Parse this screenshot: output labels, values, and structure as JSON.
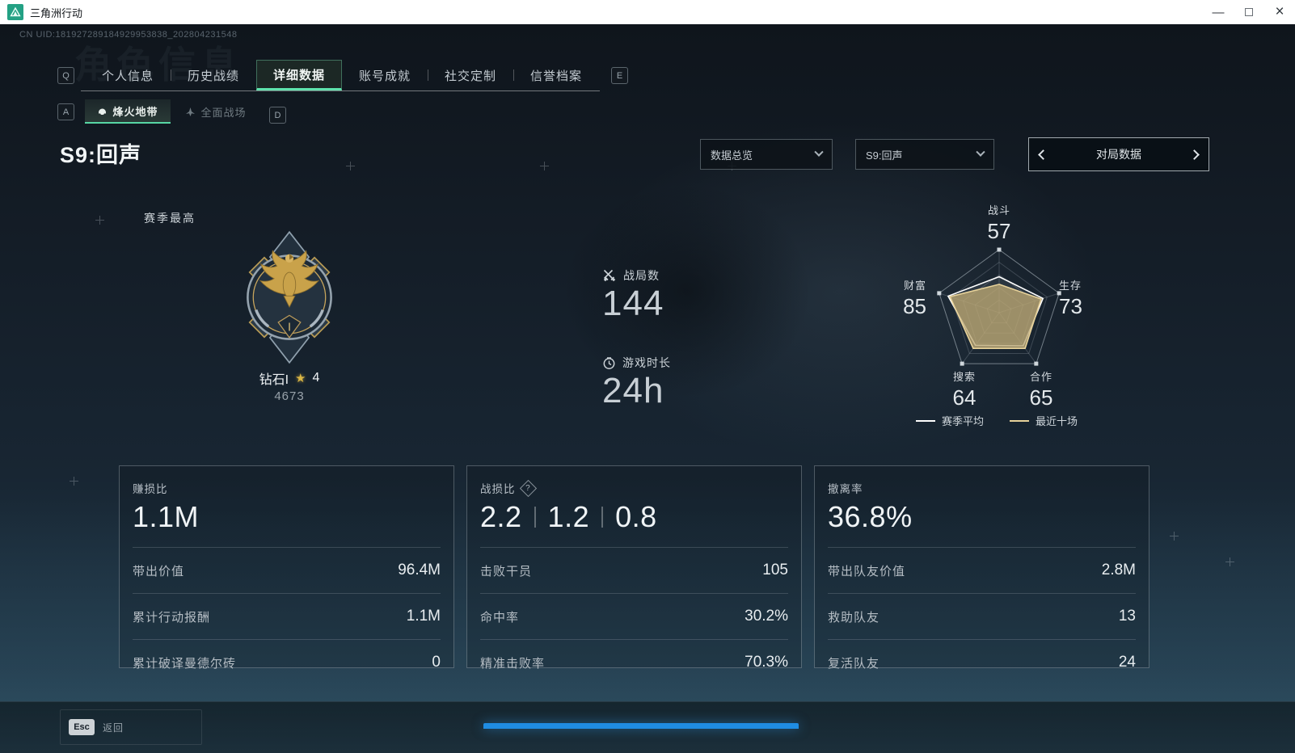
{
  "window": {
    "title": "三角洲行动",
    "uid": "CN UID:181927289184929953838_202804231548",
    "minimize_label": "—",
    "close_label": "×"
  },
  "ghost_title": "角色信息",
  "hotkeys": {
    "tabs_left": "Q",
    "tabs_right": "E",
    "subtabs_left": "A",
    "subtabs_right": "D"
  },
  "tabs": [
    {
      "label": "个人信息"
    },
    {
      "label": "历史战绩"
    },
    {
      "label": "详细数据"
    },
    {
      "label": "账号成就"
    },
    {
      "label": "社交定制"
    },
    {
      "label": "信誉档案"
    }
  ],
  "subtabs": [
    {
      "label": "烽火地带"
    },
    {
      "label": "全面战场"
    }
  ],
  "season": {
    "heading": "S9:回声",
    "overview_dropdown": "数据总览",
    "season_dropdown": "S9:回声",
    "pager_label": "对局数据"
  },
  "season_best": {
    "label": "赛季最高",
    "rank": "钻石I",
    "star_icon": "★",
    "star_count": "4",
    "points": "4673",
    "tier_numeral": "I"
  },
  "summary": {
    "matches_label": "战局数",
    "matches_value": "144",
    "playtime_label": "游戏时长",
    "playtime_value": "24h"
  },
  "chart_data": {
    "type": "radar",
    "categories": [
      "战斗",
      "生存",
      "合作",
      "搜索",
      "财富"
    ],
    "max": 100,
    "axis_values_shown": [
      57,
      73,
      65,
      64,
      85
    ],
    "series": [
      {
        "name": "赛季平均",
        "values": [
          57,
          73,
          65,
          64,
          85
        ],
        "color": "#ffffff",
        "fill": "rgba(255,255,255,0.08)"
      },
      {
        "name": "最近十场",
        "values": [
          45,
          70,
          70,
          70,
          82
        ],
        "color": "#e7d29a",
        "fill": "rgba(189,168,115,0.78)"
      }
    ],
    "legend_position": "bottom",
    "grid": true
  },
  "cards": [
    {
      "title": "赚损比",
      "big_values": [
        "1.1M"
      ],
      "rows": [
        {
          "label": "带出价值",
          "value": "96.4M"
        },
        {
          "label": "累计行动报酬",
          "value": "1.1M"
        },
        {
          "label": "累计破译曼德尔砖",
          "value": "0"
        }
      ]
    },
    {
      "title": "战损比",
      "help_icon": "?",
      "big_values": [
        "2.2",
        "1.2",
        "0.8"
      ],
      "rows": [
        {
          "label": "击败干员",
          "value": "105"
        },
        {
          "label": "命中率",
          "value": "30.2%"
        },
        {
          "label": "精准击败率",
          "value": "70.3%"
        }
      ]
    },
    {
      "title": "撤离率",
      "big_values": [
        "36.8%"
      ],
      "rows": [
        {
          "label": "带出队友价值",
          "value": "2.8M"
        },
        {
          "label": "救助队友",
          "value": "13"
        },
        {
          "label": "复活队友",
          "value": "24"
        }
      ]
    }
  ],
  "footer": {
    "esc_key": "Esc",
    "back_label": "返回"
  }
}
